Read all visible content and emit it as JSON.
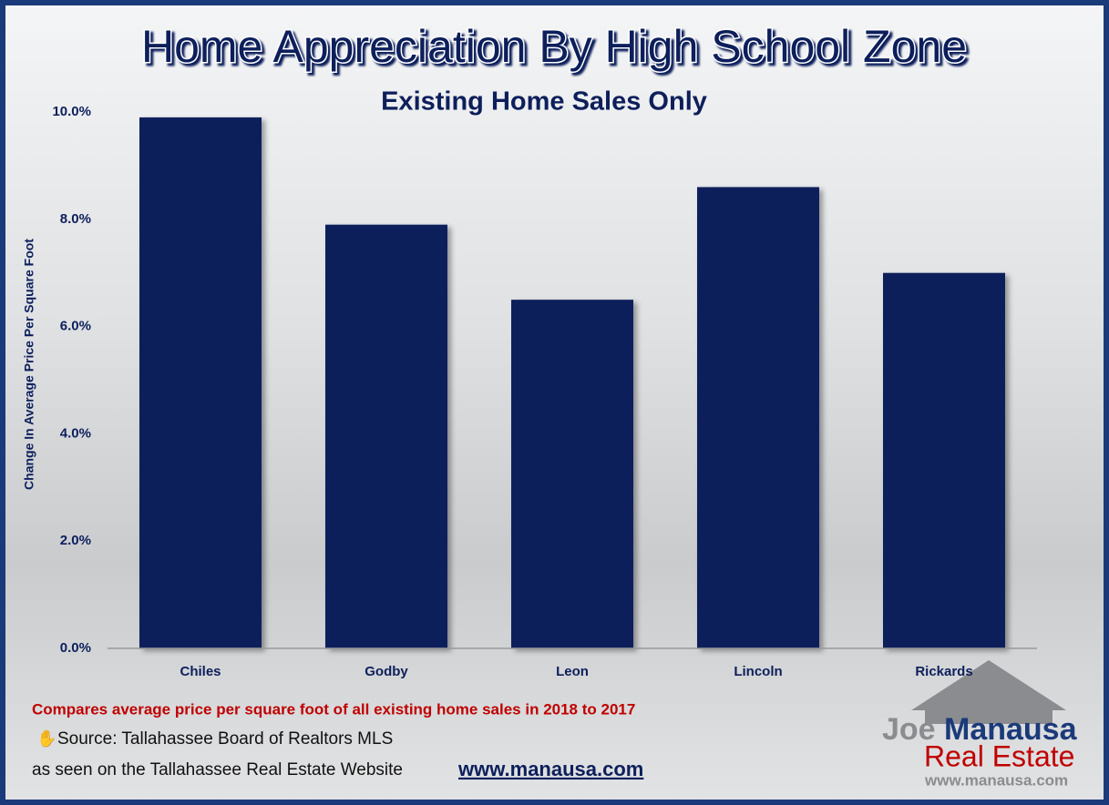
{
  "chart_data": {
    "type": "bar",
    "title": "Home Appreciation By High School Zone",
    "subtitle": "Existing Home Sales Only",
    "y_label": "Change In Average Price Per Square Foot",
    "categories": [
      "Chiles",
      "Godby",
      "Leon",
      "Lincoln",
      "Rickards"
    ],
    "values": [
      9.9,
      7.9,
      6.5,
      8.6,
      7.0
    ],
    "color": "#0d1f5b",
    "ylim": [
      0,
      10
    ],
    "yticks": [
      {
        "value": 0,
        "label": "0.0%"
      },
      {
        "value": 2,
        "label": "2.0%"
      },
      {
        "value": 4,
        "label": "4.0%"
      },
      {
        "value": 6,
        "label": "6.0%"
      },
      {
        "value": 8,
        "label": "8.0%"
      },
      {
        "value": 10,
        "label": "10.0%"
      }
    ],
    "grid": false,
    "note": "Compares average price per square foot of all existing home sales in 2018 to 2017",
    "source": "Source: Tallahassee Board of Realtors MLS",
    "seen_on": "as seen on the Tallahassee Real Estate Website",
    "url": "www.manausa.com",
    "logo": {
      "first": "Joe",
      "last": "Manausa",
      "line2": "Real Estate",
      "url": "www.manausa.com"
    }
  }
}
